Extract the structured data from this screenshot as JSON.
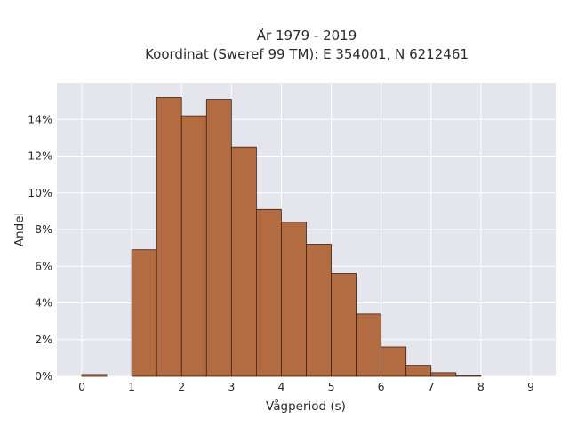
{
  "chart_data": {
    "type": "bar",
    "title_line1": "År 1979 - 2019",
    "title_line2": "Koordinat (Sweref 99 TM): E 354001, N 6212461",
    "xlabel": "Vågperiod (s)",
    "ylabel": "Andel",
    "xlim": [
      -0.5,
      9.5
    ],
    "ylim": [
      0,
      0.16
    ],
    "x_ticks": [
      0,
      1,
      2,
      3,
      4,
      5,
      6,
      7,
      8,
      9
    ],
    "y_ticks": [
      0,
      0.02,
      0.04,
      0.06,
      0.08,
      0.1,
      0.12,
      0.14
    ],
    "y_tick_labels": [
      "0%",
      "2%",
      "4%",
      "6%",
      "8%",
      "10%",
      "12%",
      "14%"
    ],
    "bin_width": 0.5,
    "bin_starts": [
      0,
      0.5,
      1.0,
      1.5,
      2.0,
      2.5,
      3.0,
      3.5,
      4.0,
      4.5,
      5.0,
      5.5,
      6.0,
      6.5,
      7.0,
      7.5,
      8.0,
      8.5
    ],
    "values": [
      0.001,
      0.0,
      0.069,
      0.152,
      0.142,
      0.151,
      0.125,
      0.091,
      0.084,
      0.072,
      0.056,
      0.034,
      0.016,
      0.006,
      0.002,
      0.0005,
      0.0,
      0.0
    ],
    "grid": true,
    "colors": {
      "bar_fill": "#b36b42",
      "bar_edge": "#3a2418",
      "plot_bg": "#e5e5ee",
      "grid": "#ffffff"
    }
  }
}
